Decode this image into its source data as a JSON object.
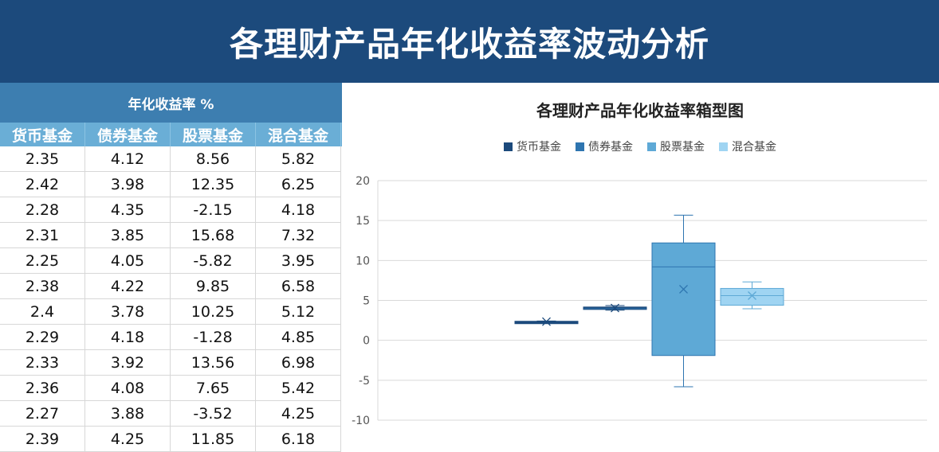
{
  "page": {
    "title": "各理财产品年化收益率波动分析"
  },
  "table": {
    "unit_header": "年化收益率 %",
    "columns": [
      "货币基金",
      "债券基金",
      "股票基金",
      "混合基金"
    ],
    "rows": [
      [
        "2.35",
        "4.12",
        "8.56",
        "5.82"
      ],
      [
        "2.42",
        "3.98",
        "12.35",
        "6.25"
      ],
      [
        "2.28",
        "4.35",
        "-2.15",
        "4.18"
      ],
      [
        "2.31",
        "3.85",
        "15.68",
        "7.32"
      ],
      [
        "2.25",
        "4.05",
        "-5.82",
        "3.95"
      ],
      [
        "2.38",
        "4.22",
        "9.85",
        "6.58"
      ],
      [
        "2.4",
        "3.78",
        "10.25",
        "5.12"
      ],
      [
        "2.29",
        "4.18",
        "-1.28",
        "4.85"
      ],
      [
        "2.33",
        "3.92",
        "13.56",
        "6.98"
      ],
      [
        "2.36",
        "4.08",
        "7.65",
        "5.42"
      ],
      [
        "2.27",
        "3.88",
        "-3.52",
        "4.25"
      ],
      [
        "2.39",
        "4.25",
        "11.85",
        "6.18"
      ]
    ]
  },
  "chart_data": {
    "type": "boxplot",
    "title": "各理财产品年化收益率箱型图",
    "legend_position": "top",
    "ylim": [
      -10,
      20
    ],
    "yticks": [
      -10,
      -5,
      0,
      5,
      10,
      15,
      20
    ],
    "grid": true,
    "series": [
      {
        "name": "货币基金",
        "color": "#1c4a7c",
        "min": 2.25,
        "q1": 2.285,
        "median": 2.34,
        "q3": 2.385,
        "max": 2.42,
        "mean": 2.34
      },
      {
        "name": "债券基金",
        "color": "#2e75b0",
        "min": 3.78,
        "q1": 3.91,
        "median": 4.065,
        "q3": 4.17,
        "max": 4.35,
        "mean": 4.05
      },
      {
        "name": "股票基金",
        "color": "#5ea9d6",
        "min": -5.82,
        "q1": -1.9,
        "median": 9.2,
        "q3": 12.2,
        "max": 15.68,
        "mean": 6.4
      },
      {
        "name": "混合基金",
        "color": "#9fd4f2",
        "min": 3.95,
        "q1": 4.4,
        "median": 5.6,
        "q3": 6.5,
        "max": 7.32,
        "mean": 5.6
      }
    ]
  }
}
